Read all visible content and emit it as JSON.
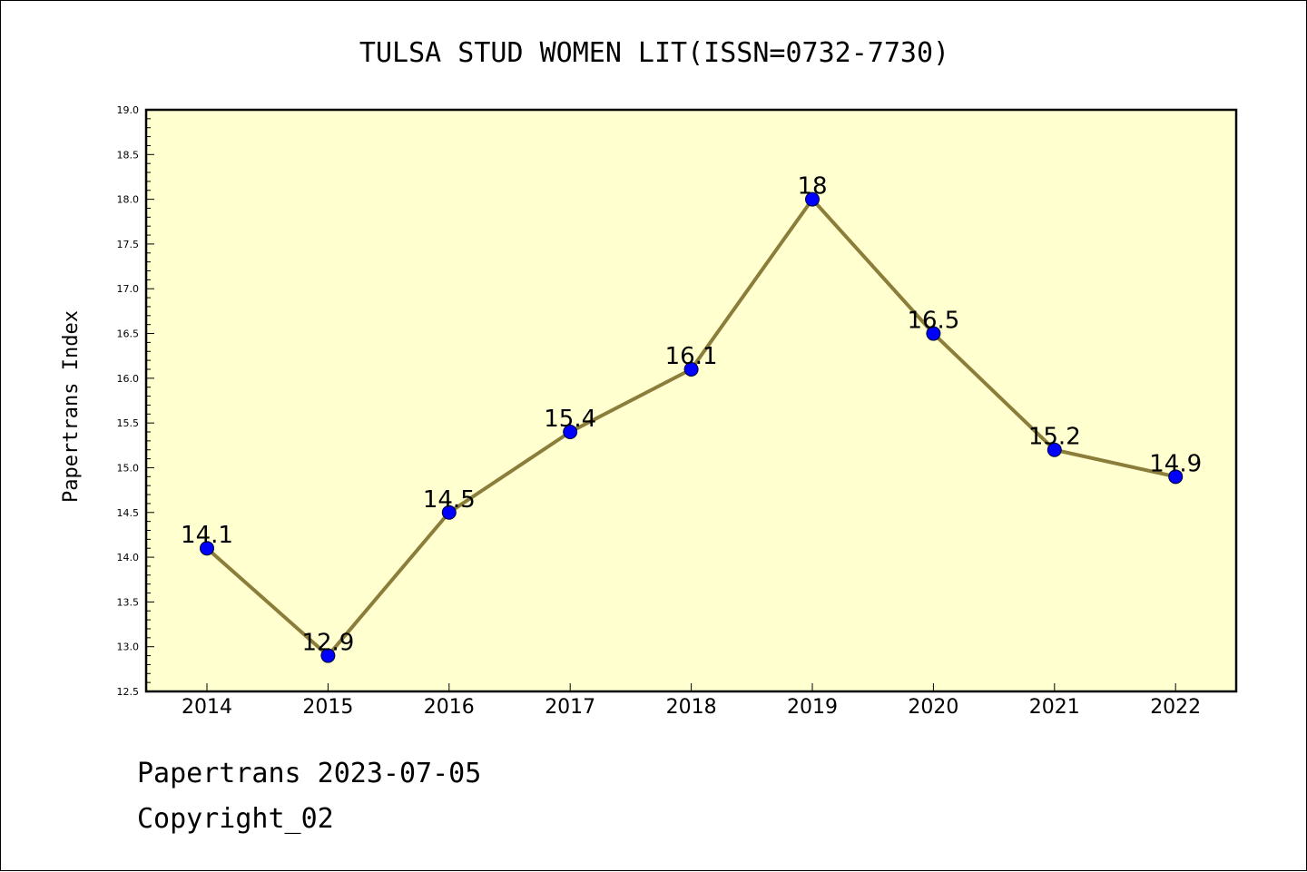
{
  "chart_data": {
    "type": "line",
    "title": "TULSA STUD WOMEN LIT(ISSN=0732-7730)",
    "xlabel": "",
    "ylabel": "Papertrans Index",
    "categories": [
      "2014",
      "2015",
      "2016",
      "2017",
      "2018",
      "2019",
      "2020",
      "2021",
      "2022"
    ],
    "values": [
      14.1,
      12.9,
      14.5,
      15.4,
      16.1,
      18,
      16.5,
      15.2,
      14.9
    ],
    "data_labels": [
      "14.1",
      "12.9",
      "14.5",
      "15.4",
      "16.1",
      "18",
      "16.5",
      "15.2",
      "14.9"
    ],
    "ylim": [
      12.5,
      19.0
    ],
    "yticks": [
      "12.5",
      "13.0",
      "13.5",
      "14.0",
      "14.5",
      "15.0",
      "15.5",
      "16.0",
      "16.5",
      "17.0",
      "17.5",
      "18.0",
      "18.5",
      "19.0"
    ],
    "grid": false,
    "legend": "none",
    "colors": {
      "plot_background": "#FFFFD0",
      "line": "#8B7D3A",
      "marker": "#0000FF"
    }
  },
  "footer": {
    "source_line": "Papertrans 2023-07-05",
    "copyright_line": "Copyright_02"
  }
}
